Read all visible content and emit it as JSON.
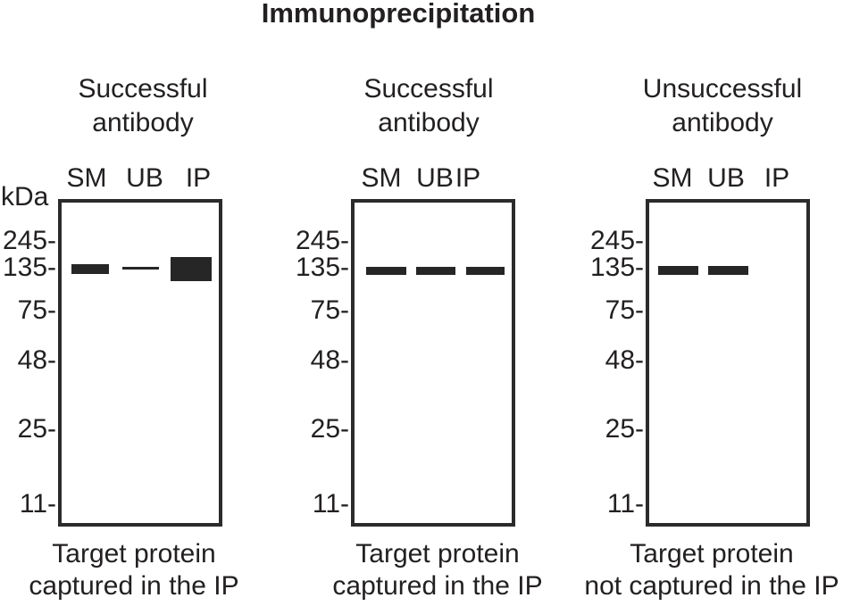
{
  "figure": {
    "title": "Immunoprecipitation",
    "unit_label": "kDa",
    "marker_labels": [
      "245-",
      "135-",
      "75-",
      "48-",
      "25-",
      "11-"
    ],
    "marker_values_kda": [
      245,
      135,
      75,
      48,
      25,
      11
    ]
  },
  "colors": {
    "ink": "#232021",
    "border": "#2b2b2b",
    "band": "#262626",
    "background": "#ffffff"
  },
  "panels": [
    {
      "id": "successful-1",
      "title_lines": [
        "Successful",
        "antibody"
      ],
      "lanes": [
        "SM",
        "UB",
        "IP"
      ],
      "caption_lines": [
        "Target protein",
        "captured in the IP"
      ],
      "bands": [
        {
          "lane": "SM",
          "position_kda": 135,
          "intensity": "medium"
        },
        {
          "lane": "UB",
          "position_kda": 135,
          "intensity": "faint"
        },
        {
          "lane": "IP",
          "position_kda": 135,
          "intensity": "strong"
        }
      ]
    },
    {
      "id": "successful-2",
      "title_lines": [
        "Successful",
        "antibody"
      ],
      "lanes": [
        "SM",
        "UB",
        "IP"
      ],
      "caption_lines": [
        "Target protein",
        "captured in the IP"
      ],
      "bands": [
        {
          "lane": "SM",
          "position_kda": 135,
          "intensity": "medium"
        },
        {
          "lane": "UB",
          "position_kda": 135,
          "intensity": "medium"
        },
        {
          "lane": "IP",
          "position_kda": 135,
          "intensity": "medium"
        }
      ]
    },
    {
      "id": "unsuccessful",
      "title_lines": [
        "Unsuccessful",
        "antibody"
      ],
      "lanes": [
        "SM",
        "UB",
        "IP"
      ],
      "caption_lines": [
        "Target protein",
        "not captured in the IP"
      ],
      "bands": [
        {
          "lane": "SM",
          "position_kda": 135,
          "intensity": "medium"
        },
        {
          "lane": "UB",
          "position_kda": 135,
          "intensity": "medium"
        }
      ]
    }
  ]
}
